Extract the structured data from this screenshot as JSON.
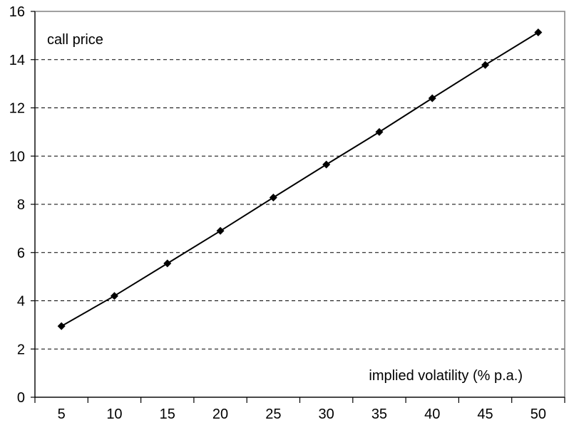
{
  "chart_data": {
    "type": "line",
    "title": "",
    "xlabel": "implied volatility (% p.a.)",
    "ylabel": "call price",
    "categories": [
      "5",
      "10",
      "15",
      "20",
      "25",
      "30",
      "35",
      "40",
      "45",
      "50"
    ],
    "series": [
      {
        "values": [
          2.95,
          4.2,
          5.55,
          6.9,
          8.28,
          9.65,
          11.0,
          12.4,
          13.78,
          15.13
        ],
        "color": "#000000",
        "marker": "diamond"
      }
    ],
    "ylim": [
      0,
      16
    ],
    "yticks": [
      "0",
      "2",
      "4",
      "6",
      "8",
      "10",
      "12",
      "14",
      "16"
    ],
    "grid": "horizontal dashed",
    "legend": "none"
  }
}
